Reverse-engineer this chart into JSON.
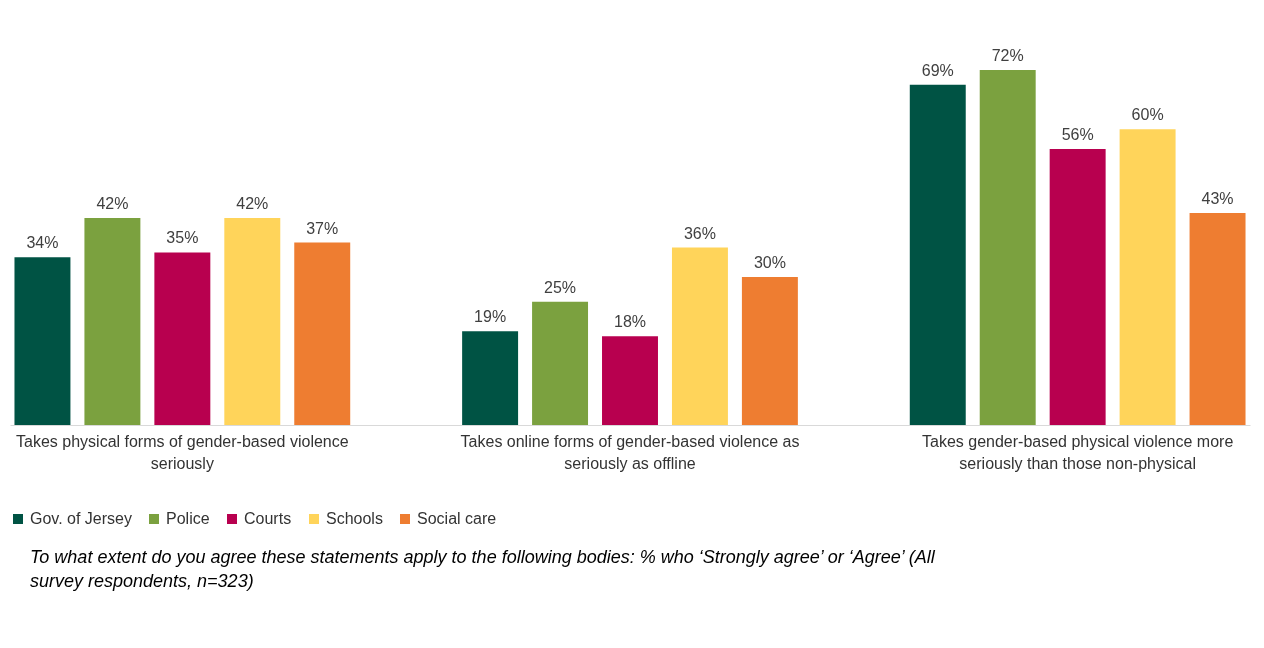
{
  "chart_data": {
    "type": "bar",
    "categories": [
      "Takes physical forms of gender-based violence seriously",
      "Takes online forms of gender-based violence as seriously as offline",
      "Takes gender-based physical violence more seriously than those non-physical"
    ],
    "series": [
      {
        "name": "Gov. of Jersey",
        "color": "#005344",
        "values": [
          34,
          19,
          69
        ],
        "value_labels": [
          "34%",
          "19%",
          "69%"
        ]
      },
      {
        "name": "Police",
        "color": "#7ba13f",
        "values": [
          42,
          25,
          72
        ],
        "value_labels": [
          "42%",
          "25%",
          "72%"
        ]
      },
      {
        "name": "Courts",
        "color": "#b8004f",
        "values": [
          35,
          18,
          56
        ],
        "value_labels": [
          "35%",
          "18%",
          "56%"
        ]
      },
      {
        "name": "Schools",
        "color": "#ffd45a",
        "values": [
          42,
          36,
          60
        ],
        "value_labels": [
          "42%",
          "36%",
          "60%"
        ]
      },
      {
        "name": "Social care",
        "color": "#ee7d31",
        "values": [
          37,
          30,
          43
        ],
        "value_labels": [
          "37%",
          "30%",
          "43%"
        ]
      }
    ],
    "legend": "bottom",
    "grid": false,
    "annotations": [
      "To what extent do you agree these statements apply to the following bodies: % who ‘Strongly agree’ or ‘Agree’ (All survey respondents, n=323)"
    ]
  }
}
